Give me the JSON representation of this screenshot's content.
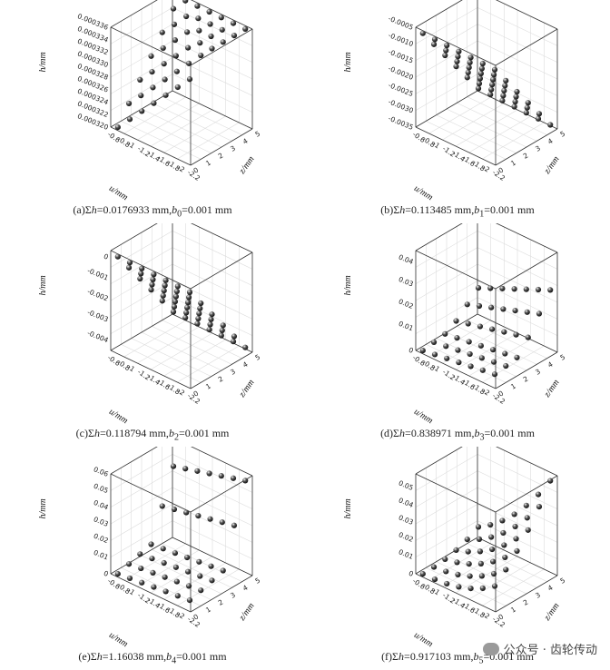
{
  "chart_data": [
    {
      "type": "scatter",
      "panel": "a",
      "caption_prefix": "(a)",
      "caption": "(a)Σh=0.0176933 mm,b0=0.001 mm",
      "xlabel": "u/mm",
      "ylabel": "z/mm",
      "zlabel": "h/mm",
      "x_ticks": [
        "-2.2",
        "-2",
        "-1.8",
        "-1.6",
        "-1.4",
        "-1.2",
        "-1",
        "-0.8",
        "-0.6"
      ],
      "y_ticks": [
        "0",
        "1",
        "2",
        "3",
        "4",
        "5"
      ],
      "z_ticks": [
        "0.000320",
        "0.000322",
        "0.000324",
        "0.000326",
        "0.000328",
        "0.000330",
        "0.000332",
        "0.000334",
        "0.000336"
      ],
      "xlim": [
        -2.2,
        -0.6
      ],
      "ylim": [
        0,
        5
      ],
      "zlim": [
        0.00032,
        0.000336
      ],
      "shape": "ramp",
      "z_from_x": true
    },
    {
      "type": "scatter",
      "panel": "b",
      "caption": "(b)Σh=0.113485 mm,b1=0.001 mm",
      "xlabel": "u/mm",
      "ylabel": "z/mm",
      "zlabel": "h/mm",
      "x_ticks": [
        "-2.2",
        "-2",
        "-1.8",
        "-1.6",
        "-1.4",
        "-1.2",
        "-1",
        "-0.8",
        "-0.6"
      ],
      "y_ticks": [
        "0",
        "1",
        "2",
        "3",
        "4",
        "5"
      ],
      "z_ticks": [
        "-0.0035",
        "-0.0030",
        "-0.0025",
        "-0.0020",
        "-0.0015",
        "-0.0010",
        "-0.0005"
      ],
      "xlim": [
        -2.2,
        -0.6
      ],
      "ylim": [
        0,
        5
      ],
      "zlim": [
        -0.0035,
        -0.0005
      ],
      "shape": "steps"
    },
    {
      "type": "scatter",
      "panel": "c",
      "caption": "(c)Σh=0.118794 mm,b2=0.001 mm",
      "xlabel": "u/mm",
      "ylabel": "z/mm",
      "zlabel": "h/mm",
      "x_ticks": [
        "-2.2",
        "-2",
        "-1.8",
        "-1.6",
        "-1.4",
        "-1.2",
        "-1",
        "-0.8",
        "-0.6"
      ],
      "y_ticks": [
        "0",
        "1",
        "2",
        "3",
        "4",
        "5"
      ],
      "z_ticks": [
        "-0.004",
        "-0.003",
        "-0.002",
        "-0.001",
        "0"
      ],
      "xlim": [
        -2.2,
        -0.6
      ],
      "ylim": [
        0,
        5
      ],
      "zlim": [
        -0.0045,
        0.0003
      ],
      "shape": "steps"
    },
    {
      "type": "scatter",
      "panel": "d",
      "caption": "(d)Σh=0.838971 mm,b3=0.001 mm",
      "xlabel": "u/mm",
      "ylabel": "z/mm",
      "zlabel": "h/mm",
      "x_ticks": [
        "-2.2",
        "-2",
        "-1.8",
        "-1.6",
        "-1.4",
        "-1.2",
        "-1",
        "-0.8",
        "-0.6"
      ],
      "y_ticks": [
        "0",
        "1",
        "2",
        "3",
        "4",
        "5"
      ],
      "z_ticks": [
        "0",
        "0.01",
        "0.02",
        "0.03",
        "0.04"
      ],
      "xlim": [
        -2.2,
        -0.6
      ],
      "ylim": [
        0,
        5
      ],
      "zlim": [
        0,
        0.045
      ],
      "shape": "rise"
    },
    {
      "type": "scatter",
      "panel": "e",
      "caption": "(e)Σh=1.16038 mm,b4=0.001 mm",
      "xlabel": "u/mm",
      "ylabel": "z/mm",
      "zlabel": "h/mm",
      "x_ticks": [
        "-2.2",
        "-2",
        "-1.8",
        "-1.6",
        "-1.4",
        "-1.2",
        "-1",
        "-0.8",
        "-0.6"
      ],
      "y_ticks": [
        "0",
        "1",
        "2",
        "3",
        "4",
        "5"
      ],
      "z_ticks": [
        "0",
        "0.01",
        "0.02",
        "0.03",
        "0.04",
        "0.05",
        "0.06"
      ],
      "xlim": [
        -2.2,
        -0.6
      ],
      "ylim": [
        0,
        5
      ],
      "zlim": [
        0,
        0.06
      ],
      "shape": "split"
    },
    {
      "type": "scatter",
      "panel": "f",
      "caption": "(f)Σh=0.917103 mm,b5=0.001 mm",
      "xlabel": "u/mm",
      "ylabel": "z/mm",
      "zlabel": "h/mm",
      "x_ticks": [
        "-2.2",
        "-2",
        "-1.8",
        "-1.6",
        "-1.4",
        "-1.2",
        "-1",
        "-0.8",
        "-0.6"
      ],
      "y_ticks": [
        "0",
        "1",
        "2",
        "3",
        "4",
        "5"
      ],
      "z_ticks": [
        "0",
        "0.01",
        "0.02",
        "0.03",
        "0.04",
        "0.05"
      ],
      "xlim": [
        -2.2,
        -0.6
      ],
      "ylim": [
        0,
        5
      ],
      "zlim": [
        0,
        0.058
      ],
      "shape": "curve"
    }
  ],
  "captions": [
    {
      "pre": "(a)Σ",
      "h": "h",
      "mid": "=0.0176933 mm,",
      "b": "b",
      "sub": "0",
      "post": "=0.001 mm"
    },
    {
      "pre": "(b)Σ",
      "h": "h",
      "mid": "=0.113485 mm,",
      "b": "b",
      "sub": "1",
      "post": "=0.001 mm"
    },
    {
      "pre": "(c)Σ",
      "h": "h",
      "mid": "=0.118794 mm,",
      "b": "b",
      "sub": "2",
      "post": "=0.001 mm"
    },
    {
      "pre": "(d)Σ",
      "h": "h",
      "mid": "=0.838971 mm,",
      "b": "b",
      "sub": "3",
      "post": "=0.001 mm"
    },
    {
      "pre": "(e)Σ",
      "h": "h",
      "mid": "=1.16038 mm,",
      "b": "b",
      "sub": "4",
      "post": "=0.001 mm"
    },
    {
      "pre": "(f)Σ",
      "h": "h",
      "mid": "=0.917103 mm,",
      "b": "b",
      "sub": "5",
      "post": "=0.001 mm"
    }
  ],
  "watermark": {
    "text": "公众号 · 齿轮传动"
  }
}
